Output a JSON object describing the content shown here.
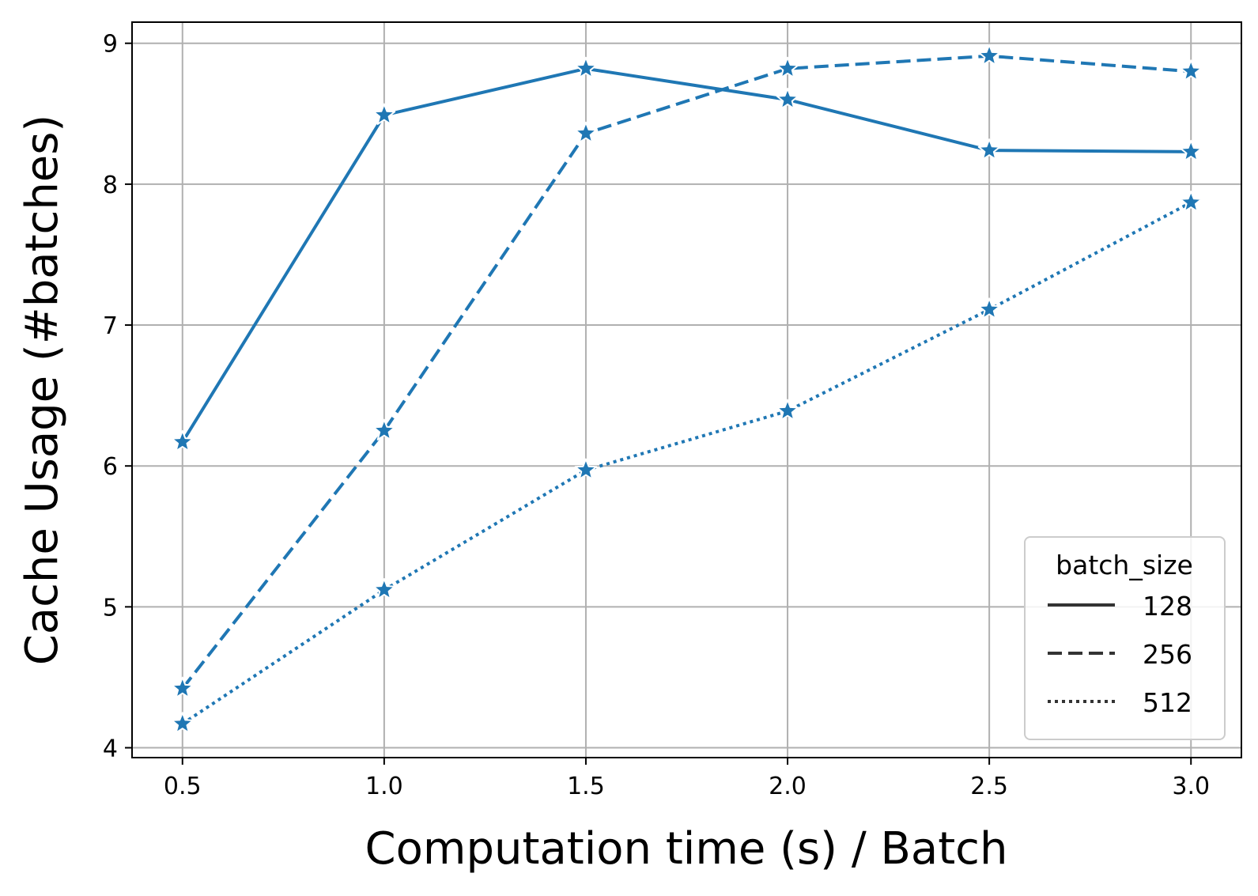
{
  "chart_data": {
    "type": "line",
    "xlabel": "Computation time (s) / Batch",
    "ylabel": "Cache Usage (#batches)",
    "x": [
      0.5,
      1.0,
      1.5,
      2.0,
      2.5,
      3.0
    ],
    "x_ticks": [
      "0.5",
      "1.0",
      "1.5",
      "2.0",
      "2.5",
      "3.0"
    ],
    "y_ticks": [
      "4",
      "5",
      "6",
      "7",
      "8",
      "9"
    ],
    "xlim": [
      0.375,
      3.125
    ],
    "ylim": [
      3.93,
      9.15
    ],
    "grid": true,
    "marker": "star",
    "line_color": "#1f77b4",
    "legend": {
      "title": "batch_size",
      "placement": "lower-right"
    },
    "series": [
      {
        "name": "128",
        "style": "solid",
        "values": [
          6.17,
          8.49,
          8.82,
          8.6,
          8.24,
          8.23
        ]
      },
      {
        "name": "256",
        "style": "dashed",
        "values": [
          4.42,
          6.25,
          8.36,
          8.82,
          8.91,
          8.8
        ]
      },
      {
        "name": "512",
        "style": "dotted",
        "values": [
          4.17,
          5.12,
          5.97,
          6.39,
          7.11,
          7.87
        ]
      }
    ]
  }
}
